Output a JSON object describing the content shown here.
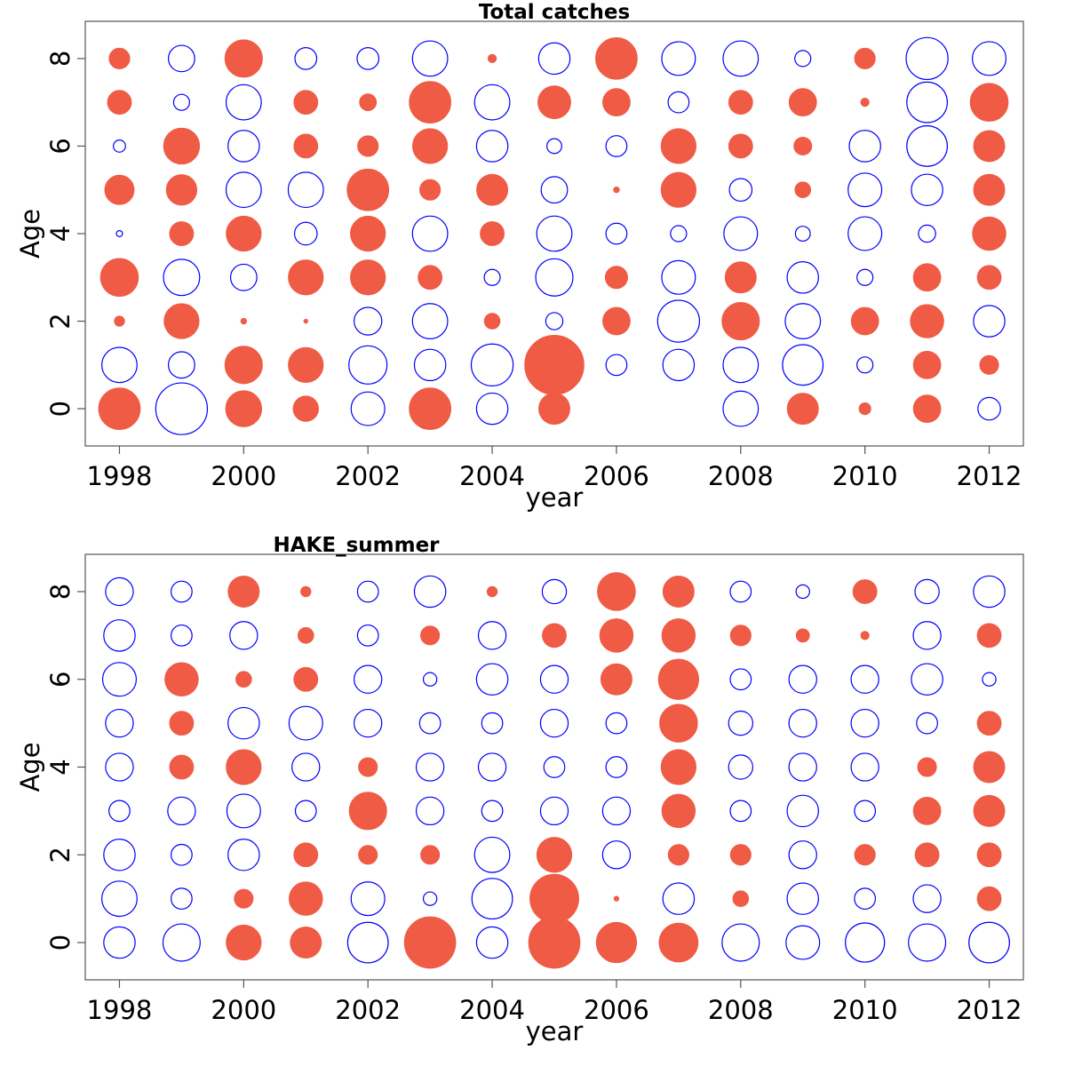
{
  "chart_data": [
    {
      "type": "bubble",
      "title": "Total catches",
      "xlabel": "year",
      "ylabel": "Age",
      "xlim": [
        1997.45,
        2012.55
      ],
      "ylim": [
        -0.85,
        8.85
      ],
      "x_ticks": [
        1998,
        2000,
        2002,
        2004,
        2006,
        2008,
        2010,
        2012
      ],
      "y_ticks": [
        0,
        2,
        4,
        6,
        8
      ],
      "years": [
        1998,
        1999,
        2000,
        2001,
        2002,
        2003,
        2004,
        2005,
        2006,
        2007,
        2008,
        2009,
        2010,
        2011,
        2012
      ],
      "ages": [
        0,
        1,
        2,
        3,
        4,
        5,
        6,
        7,
        8
      ],
      "colors": {
        "positive": "#0000ff",
        "negative": "#ef5b45"
      },
      "residuals": [
        [
          -0.48,
          0.34,
          -0.03,
          -0.4,
          0.01,
          -0.24,
          0.04,
          -0.16,
          -0.12
        ],
        [
          0.73,
          0.19,
          -0.34,
          0.36,
          -0.16,
          -0.26,
          -0.36,
          0.07,
          0.19
        ],
        [
          -0.36,
          -0.39,
          -0.01,
          0.19,
          -0.34,
          0.34,
          0.27,
          0.34,
          -0.39
        ],
        [
          -0.18,
          -0.34,
          -0.005,
          -0.34,
          0.14,
          0.34,
          -0.16,
          -0.16,
          0.13
        ],
        [
          0.31,
          0.4,
          0.21,
          -0.34,
          -0.34,
          -0.48,
          -0.12,
          -0.08,
          0.13
        ],
        [
          -0.48,
          0.27,
          0.34,
          -0.16,
          0.34,
          -0.12,
          -0.34,
          -0.48,
          0.34
        ],
        [
          0.27,
          0.48,
          -0.07,
          0.07,
          -0.16,
          -0.27,
          0.27,
          0.34,
          -0.02
        ],
        [
          -0.27,
          -0.97,
          0.08,
          0.38,
          0.34,
          0.19,
          0.06,
          -0.3,
          0.27
        ],
        [
          0,
          0.12,
          -0.21,
          -0.14,
          0.12,
          -0.01,
          0.12,
          -0.21,
          -0.48
        ],
        [
          0,
          0.27,
          0.48,
          0.31,
          0.07,
          -0.34,
          -0.34,
          0.12,
          0.31
        ],
        [
          0.34,
          0.34,
          -0.39,
          -0.27,
          0.31,
          0.14,
          -0.16,
          -0.16,
          0.34
        ],
        [
          -0.27,
          0.45,
          0.34,
          0.27,
          0.06,
          -0.07,
          -0.09,
          -0.21,
          0.07
        ],
        [
          -0.04,
          0.07,
          -0.21,
          0.07,
          0.31,
          0.31,
          0.27,
          -0.02,
          -0.12
        ],
        [
          -0.21,
          -0.21,
          -0.31,
          -0.21,
          0.08,
          0.27,
          0.45,
          0.45,
          0.48
        ],
        [
          0.14,
          -0.1,
          0.27,
          -0.16,
          -0.31,
          -0.27,
          -0.27,
          -0.4,
          0.31
        ]
      ]
    },
    {
      "type": "bubble",
      "title": "HAKE_summer",
      "xlabel": "year",
      "ylabel": "Age",
      "xlim": [
        1997.45,
        2012.55
      ],
      "ylim": [
        -0.85,
        8.85
      ],
      "x_ticks": [
        1998,
        2000,
        2002,
        2004,
        2006,
        2008,
        2010,
        2012
      ],
      "y_ticks": [
        0,
        2,
        4,
        6,
        8
      ],
      "years": [
        1998,
        1999,
        2000,
        2001,
        2002,
        2003,
        2004,
        2005,
        2006,
        2007,
        2008,
        2009,
        2010,
        2011,
        2012
      ],
      "ages": [
        0,
        1,
        2,
        3,
        4,
        5,
        6,
        7,
        8
      ],
      "colors": {
        "positive": "#0000ff",
        "negative": "#ef5b45"
      },
      "residuals": [
        [
          0.27,
          0.34,
          0.27,
          0.12,
          0.21,
          0.21,
          0.31,
          0.27,
          0.21
        ],
        [
          0.38,
          0.12,
          0.12,
          0.21,
          -0.16,
          -0.16,
          -0.31,
          0.12,
          0.12
        ],
        [
          -0.34,
          -0.1,
          0.27,
          0.31,
          -0.34,
          0.27,
          -0.07,
          0.21,
          -0.27
        ],
        [
          -0.27,
          -0.31,
          -0.16,
          0.12,
          0.21,
          0.31,
          -0.16,
          -0.07,
          -0.03
        ],
        [
          0.45,
          0.31,
          -0.1,
          -0.39,
          -0.1,
          0.21,
          0.21,
          0.12,
          0.12
        ],
        [
          -0.73,
          0.05,
          -0.1,
          0.21,
          0.21,
          0.12,
          0.05,
          -0.1,
          0.27
        ],
        [
          0.27,
          0.45,
          0.34,
          0.12,
          0.21,
          0.12,
          0.27,
          0.21,
          -0.03
        ],
        [
          -0.73,
          -0.66,
          -0.34,
          0.21,
          0.12,
          0.21,
          0.21,
          -0.16,
          0.16
        ],
        [
          -0.45,
          -0.007,
          0.21,
          0.21,
          0.12,
          0.12,
          -0.27,
          -0.31,
          -0.4
        ],
        [
          -0.42,
          0.27,
          -0.12,
          -0.31,
          -0.34,
          -0.4,
          -0.45,
          -0.31,
          -0.27
        ],
        [
          0.38,
          -0.07,
          -0.12,
          0.12,
          0.16,
          0.16,
          0.12,
          -0.12,
          0.12
        ],
        [
          0.31,
          0.27,
          0.21,
          0.27,
          0.21,
          0.21,
          0.21,
          -0.05,
          0.05
        ],
        [
          0.42,
          0.12,
          -0.12,
          0.12,
          0.21,
          0.21,
          0.21,
          -0.02,
          -0.16
        ],
        [
          0.38,
          0.21,
          -0.16,
          -0.21,
          -0.1,
          0.12,
          0.27,
          0.21,
          0.16
        ],
        [
          0.45,
          -0.16,
          -0.16,
          -0.27,
          -0.27,
          -0.16,
          0.05,
          -0.16,
          0.27
        ]
      ]
    }
  ]
}
